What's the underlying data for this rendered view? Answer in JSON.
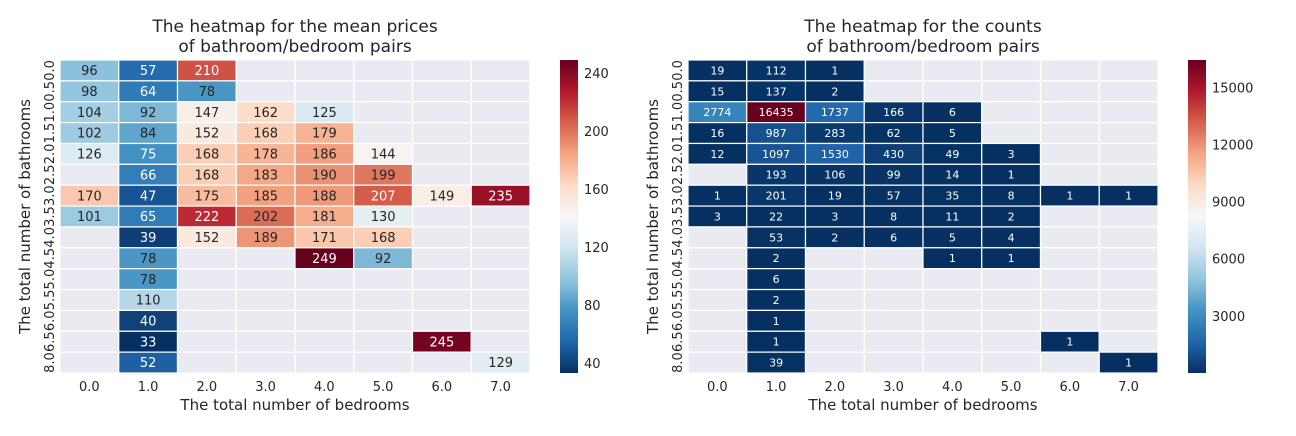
{
  "chart_data": [
    {
      "type": "heatmap",
      "title": "The heatmap for the mean prices\nof bathroom/bedroom pairs",
      "xlabel": "The total number of bedrooms",
      "ylabel": "The total number of bathrooms",
      "x_categories": [
        "0.0",
        "1.0",
        "2.0",
        "3.0",
        "4.0",
        "5.0",
        "6.0",
        "7.0"
      ],
      "y_categories": [
        "0.0",
        "0.5",
        "1.0",
        "1.5",
        "2.0",
        "2.5",
        "3.0",
        "3.5",
        "4.0",
        "4.5",
        "5.0",
        "5.5",
        "6.0",
        "6.5",
        "8.0"
      ],
      "values": [
        [
          96,
          57,
          210,
          null,
          null,
          null,
          null,
          null
        ],
        [
          98,
          64,
          78,
          null,
          null,
          null,
          null,
          null
        ],
        [
          104,
          92,
          147,
          162,
          125,
          null,
          null,
          null
        ],
        [
          102,
          84,
          152,
          168,
          179,
          null,
          null,
          null
        ],
        [
          126,
          75,
          168,
          178,
          186,
          144,
          null,
          null
        ],
        [
          null,
          66,
          168,
          183,
          190,
          199,
          null,
          null
        ],
        [
          170,
          47,
          175,
          185,
          188,
          207,
          149,
          235
        ],
        [
          101,
          65,
          222,
          202,
          181,
          130,
          null,
          null
        ],
        [
          null,
          39,
          152,
          189,
          171,
          168,
          null,
          null
        ],
        [
          null,
          78,
          null,
          null,
          249,
          92,
          null,
          null
        ],
        [
          null,
          78,
          null,
          null,
          null,
          null,
          null,
          null
        ],
        [
          null,
          110,
          null,
          null,
          null,
          null,
          null,
          null
        ],
        [
          null,
          40,
          null,
          null,
          null,
          null,
          null,
          null
        ],
        [
          null,
          33,
          null,
          null,
          null,
          null,
          245,
          null
        ],
        [
          null,
          52,
          null,
          null,
          null,
          null,
          null,
          129
        ]
      ],
      "colorbar": {
        "min": 33,
        "max": 249,
        "ticks": [
          "40",
          "80",
          "120",
          "160",
          "200",
          "240"
        ]
      },
      "colormap": "RdBu_r",
      "missing_color": "#eaeaf2",
      "grid_color": "#ffffff"
    },
    {
      "type": "heatmap",
      "title": "The heatmap for the counts\nof bathroom/bedroom pairs",
      "xlabel": "The total number of bedrooms",
      "ylabel": "The total number of bathrooms",
      "x_categories": [
        "0.0",
        "1.0",
        "2.0",
        "3.0",
        "4.0",
        "5.0",
        "6.0",
        "7.0"
      ],
      "y_categories": [
        "0.0",
        "0.5",
        "1.0",
        "1.5",
        "2.0",
        "2.5",
        "3.0",
        "3.5",
        "4.0",
        "4.5",
        "5.0",
        "5.5",
        "6.0",
        "6.5",
        "8.0"
      ],
      "values": [
        [
          19,
          112,
          1,
          null,
          null,
          null,
          null,
          null
        ],
        [
          15,
          137,
          2,
          null,
          null,
          null,
          null,
          null
        ],
        [
          2774,
          16435,
          1737,
          166,
          6,
          null,
          null,
          null
        ],
        [
          16,
          987,
          283,
          62,
          5,
          null,
          null,
          null
        ],
        [
          12,
          1097,
          1530,
          430,
          49,
          3,
          null,
          null
        ],
        [
          null,
          193,
          106,
          99,
          14,
          1,
          null,
          null
        ],
        [
          1,
          201,
          19,
          57,
          35,
          8,
          1,
          1
        ],
        [
          3,
          22,
          3,
          8,
          11,
          2,
          null,
          null
        ],
        [
          null,
          53,
          2,
          6,
          5,
          4,
          null,
          null
        ],
        [
          null,
          2,
          null,
          null,
          1,
          1,
          null,
          null
        ],
        [
          null,
          6,
          null,
          null,
          null,
          null,
          null,
          null
        ],
        [
          null,
          2,
          null,
          null,
          null,
          null,
          null,
          null
        ],
        [
          null,
          1,
          null,
          null,
          null,
          null,
          null,
          null
        ],
        [
          null,
          1,
          null,
          null,
          null,
          null,
          1,
          null
        ],
        [
          null,
          39,
          null,
          null,
          null,
          null,
          null,
          1
        ]
      ],
      "colorbar": {
        "min": 1,
        "max": 16435,
        "ticks": [
          "3000",
          "6000",
          "9000",
          "12000",
          "15000"
        ]
      },
      "colormap": "RdBu_r",
      "missing_color": "#eaeaf2",
      "grid_color": "#ffffff"
    }
  ]
}
